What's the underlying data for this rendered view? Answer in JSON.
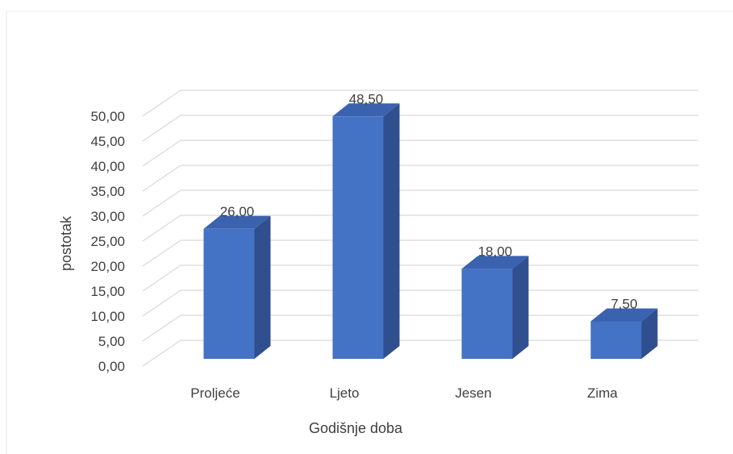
{
  "chart_data": {
    "type": "bar",
    "style": "3d-column",
    "categories": [
      "Proljeće",
      "Ljeto",
      "Jesen",
      "Zima"
    ],
    "values": [
      26.0,
      48.5,
      18.0,
      7.5
    ],
    "data_labels": [
      "26,00",
      "48,50",
      "18,00",
      "7,50"
    ],
    "title": "",
    "xlabel": "Godišnje doba",
    "ylabel": "postotak",
    "ylim": [
      0,
      50
    ],
    "ytick_values": [
      0,
      5,
      10,
      15,
      20,
      25,
      30,
      35,
      40,
      45,
      50
    ],
    "ytick_labels": [
      "0,00",
      "5,00",
      "10,00",
      "15,00",
      "20,00",
      "25,00",
      "30,00",
      "35,00",
      "40,00",
      "45,00",
      "50,00"
    ],
    "grid": true,
    "legend": "none",
    "colors": {
      "bar_front": "#4472C4",
      "bar_side": "#2F4F8F",
      "bar_top": "#3A62AE",
      "gridline": "#D9D9D9",
      "text": "#404040"
    }
  }
}
